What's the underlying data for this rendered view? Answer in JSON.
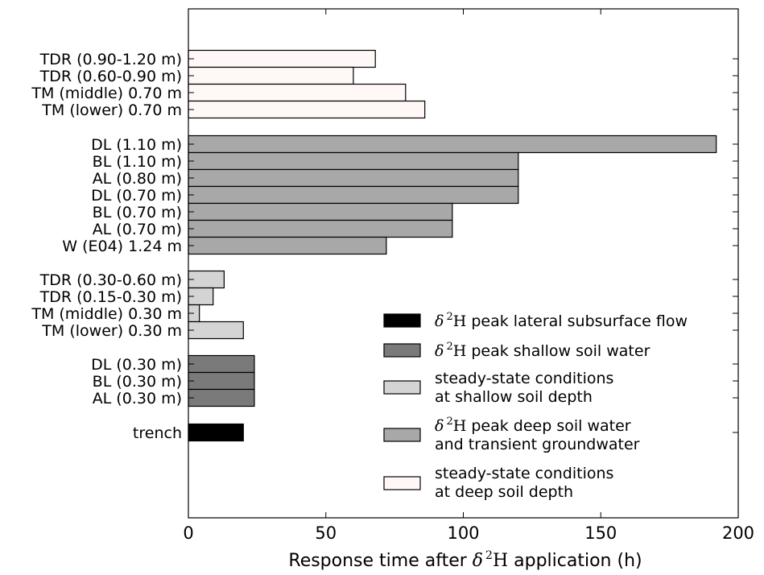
{
  "chart_data": {
    "type": "bar",
    "orientation": "horizontal",
    "xlabel": {
      "pre": "Response time after ",
      "delta": "δ",
      "sup": "2",
      "iso": "H",
      "post": " application (h)"
    },
    "xlim": [
      0,
      200
    ],
    "xticks": [
      0,
      50,
      100,
      150,
      200
    ],
    "grid": false,
    "legend_position": "lower-right",
    "colors": {
      "lateral": "#000000",
      "shallow": "#7a7a7a",
      "steady_shallow": "#d4d4d4",
      "deep": "#a8a8a8",
      "steady_deep": "#fff8f6"
    },
    "bars": [
      {
        "label": "TDR (0.90-1.20 m)",
        "value": 68,
        "group": "steady_deep"
      },
      {
        "label": "TDR (0.60-0.90 m)",
        "value": 60,
        "group": "steady_deep"
      },
      {
        "label": "TM (middle) 0.70 m",
        "value": 79,
        "group": "steady_deep"
      },
      {
        "label": "TM (lower) 0.70 m",
        "value": 86,
        "group": "steady_deep"
      },
      {
        "label": "DL (1.10 m)",
        "value": 192,
        "group": "deep"
      },
      {
        "label": "BL (1.10 m)",
        "value": 120,
        "group": "deep"
      },
      {
        "label": "AL (0.80 m)",
        "value": 120,
        "group": "deep"
      },
      {
        "label": "DL (0.70 m)",
        "value": 120,
        "group": "deep"
      },
      {
        "label": "BL (0.70 m)",
        "value": 96,
        "group": "deep"
      },
      {
        "label": "AL (0.70 m)",
        "value": 96,
        "group": "deep"
      },
      {
        "label": "W (E04) 1.24 m",
        "value": 72,
        "group": "deep"
      },
      {
        "label": "TDR (0.30-0.60 m)",
        "value": 13,
        "group": "steady_shallow"
      },
      {
        "label": "TDR (0.15-0.30 m)",
        "value": 9,
        "group": "steady_shallow"
      },
      {
        "label": "TM (middle) 0.30 m",
        "value": 4,
        "group": "steady_shallow"
      },
      {
        "label": "TM (lower) 0.30 m",
        "value": 20,
        "group": "steady_shallow"
      },
      {
        "label": "DL (0.30 m)",
        "value": 24,
        "group": "shallow"
      },
      {
        "label": "BL (0.30 m)",
        "value": 24,
        "group": "shallow"
      },
      {
        "label": "AL (0.30 m)",
        "value": 24,
        "group": "shallow"
      },
      {
        "label": "trench",
        "value": 20,
        "group": "lateral"
      }
    ],
    "legend": [
      {
        "group": "lateral",
        "lines": [
          {
            "pre": "",
            "delta": "δ",
            "sup": "2",
            "iso": "H",
            "post": " peak lateral subsurface flow"
          }
        ]
      },
      {
        "group": "shallow",
        "lines": [
          {
            "pre": "",
            "delta": "δ",
            "sup": "2",
            "iso": "H",
            "post": " peak shallow soil water"
          }
        ]
      },
      {
        "group": "steady_shallow",
        "lines": [
          {
            "text": "steady-state conditions"
          },
          {
            "text": "at shallow soil depth"
          }
        ]
      },
      {
        "group": "deep",
        "lines": [
          {
            "pre": "",
            "delta": "δ",
            "sup": "2",
            "iso": "H",
            "post": " peak deep soil water"
          },
          {
            "text": "and transient groundwater"
          }
        ]
      },
      {
        "group": "steady_deep",
        "lines": [
          {
            "text": "steady-state conditions"
          },
          {
            "text": "at deep soil depth"
          }
        ]
      }
    ]
  }
}
